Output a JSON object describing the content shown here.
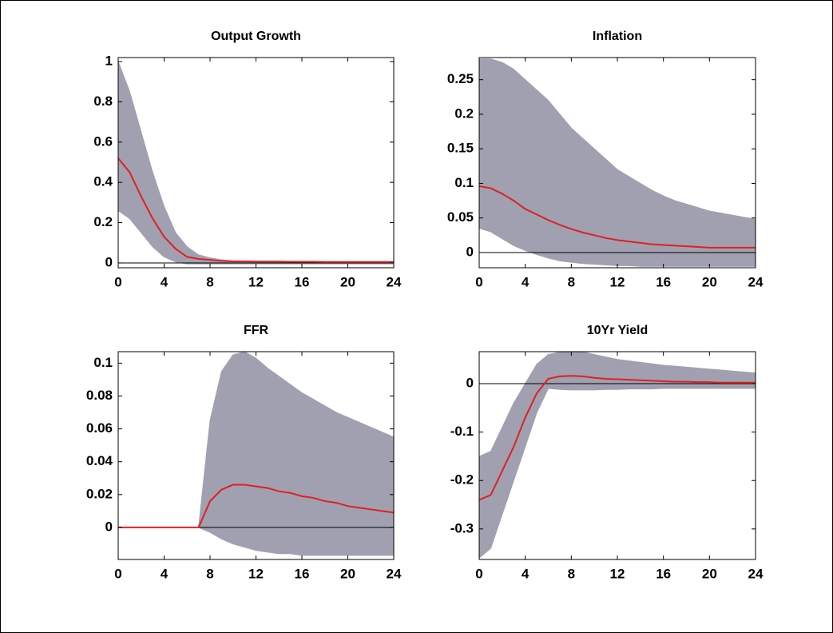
{
  "chart_data": [
    {
      "type": "line",
      "title": "Output Growth",
      "x": [
        0,
        1,
        2,
        3,
        4,
        5,
        6,
        7,
        8,
        9,
        10,
        11,
        12,
        13,
        14,
        15,
        16,
        17,
        18,
        19,
        20,
        21,
        22,
        23,
        24
      ],
      "values": [
        0.52,
        0.45,
        0.33,
        0.22,
        0.13,
        0.07,
        0.03,
        0.02,
        0.015,
        0.01,
        0.008,
        0.008,
        0.007,
        0.007,
        0.007,
        0.006,
        0.006,
        0.006,
        0.005,
        0.005,
        0.005,
        0.005,
        0.005,
        0.005,
        0.005
      ],
      "color": "#e02020",
      "band": {
        "upper": [
          1.0,
          0.85,
          0.65,
          0.45,
          0.28,
          0.15,
          0.08,
          0.04,
          0.025,
          0.015,
          0.01,
          0.009,
          0.008,
          0.008,
          0.007,
          0.007,
          0.007,
          0.006,
          0.006,
          0.006,
          0.006,
          0.005,
          0.005,
          0.005,
          0.005
        ],
        "lower": [
          0.26,
          0.22,
          0.15,
          0.08,
          0.03,
          0.005,
          -0.005,
          -0.005,
          -0.005,
          -0.005,
          -0.005,
          -0.005,
          -0.005,
          -0.005,
          -0.005,
          -0.005,
          -0.005,
          -0.005,
          -0.005,
          -0.005,
          -0.005,
          -0.005,
          -0.005,
          -0.005,
          -0.005
        ],
        "color": "#a0a0b0"
      },
      "xlim": [
        0,
        24
      ],
      "ylim": [
        -0.024,
        1.02
      ],
      "xticks": [
        0,
        4,
        8,
        12,
        16,
        20,
        24
      ],
      "yticks": [
        0,
        0.2,
        0.4,
        0.6,
        0.8,
        1
      ]
    },
    {
      "type": "line",
      "title": "Inflation",
      "x": [
        0,
        1,
        2,
        3,
        4,
        5,
        6,
        7,
        8,
        9,
        10,
        11,
        12,
        13,
        14,
        15,
        16,
        17,
        18,
        19,
        20,
        21,
        22,
        23,
        24
      ],
      "values": [
        0.096,
        0.093,
        0.085,
        0.075,
        0.063,
        0.055,
        0.047,
        0.04,
        0.034,
        0.029,
        0.025,
        0.021,
        0.018,
        0.016,
        0.014,
        0.012,
        0.011,
        0.01,
        0.009,
        0.008,
        0.007,
        0.007,
        0.007,
        0.007,
        0.007
      ],
      "color": "#e02020",
      "band": {
        "upper": [
          0.28,
          0.28,
          0.275,
          0.265,
          0.25,
          0.235,
          0.22,
          0.2,
          0.18,
          0.165,
          0.15,
          0.135,
          0.12,
          0.11,
          0.1,
          0.09,
          0.082,
          0.075,
          0.07,
          0.065,
          0.06,
          0.057,
          0.054,
          0.051,
          0.048
        ],
        "lower": [
          0.035,
          0.03,
          0.02,
          0.01,
          0.003,
          -0.003,
          -0.008,
          -0.012,
          -0.014,
          -0.016,
          -0.017,
          -0.018,
          -0.019,
          -0.019,
          -0.02,
          -0.02,
          -0.02,
          -0.02,
          -0.02,
          -0.02,
          -0.02,
          -0.02,
          -0.02,
          -0.02,
          -0.02
        ],
        "color": "#a0a0b0"
      },
      "xlim": [
        0,
        24
      ],
      "ylim": [
        -0.022,
        0.282
      ],
      "xticks": [
        0,
        4,
        8,
        12,
        16,
        20,
        24
      ],
      "yticks": [
        0,
        0.05,
        0.1,
        0.15,
        0.2,
        0.25
      ]
    },
    {
      "type": "line",
      "title": "FFR",
      "x": [
        0,
        1,
        2,
        3,
        4,
        5,
        6,
        7,
        8,
        9,
        10,
        11,
        12,
        13,
        14,
        15,
        16,
        17,
        18,
        19,
        20,
        21,
        22,
        23,
        24
      ],
      "values": [
        0,
        0,
        0,
        0,
        0,
        0,
        0,
        0,
        0.016,
        0.023,
        0.026,
        0.026,
        0.025,
        0.024,
        0.022,
        0.021,
        0.019,
        0.018,
        0.016,
        0.015,
        0.013,
        0.012,
        0.011,
        0.01,
        0.009
      ],
      "color": "#e02020",
      "band": {
        "upper": [
          0,
          0,
          0,
          0,
          0,
          0,
          0,
          0,
          0.065,
          0.095,
          0.105,
          0.107,
          0.103,
          0.097,
          0.092,
          0.087,
          0.082,
          0.078,
          0.074,
          0.07,
          0.067,
          0.064,
          0.061,
          0.058,
          0.055
        ],
        "lower": [
          0,
          0,
          0,
          0,
          0,
          0,
          0,
          0,
          -0.003,
          -0.007,
          -0.01,
          -0.012,
          -0.014,
          -0.015,
          -0.016,
          -0.016,
          -0.017,
          -0.017,
          -0.017,
          -0.017,
          -0.017,
          -0.017,
          -0.017,
          -0.017,
          -0.017
        ],
        "color": "#a0a0b0"
      },
      "xlim": [
        0,
        24
      ],
      "ylim": [
        -0.0195,
        0.107
      ],
      "xticks": [
        0,
        4,
        8,
        12,
        16,
        20,
        24
      ],
      "yticks": [
        0,
        0.02,
        0.04,
        0.06,
        0.08,
        0.1
      ]
    },
    {
      "type": "line",
      "title": "10Yr Yield",
      "x": [
        0,
        1,
        2,
        3,
        4,
        5,
        6,
        7,
        8,
        9,
        10,
        11,
        12,
        13,
        14,
        15,
        16,
        17,
        18,
        19,
        20,
        21,
        22,
        23,
        24
      ],
      "values": [
        -0.24,
        -0.23,
        -0.18,
        -0.13,
        -0.07,
        -0.02,
        0.01,
        0.015,
        0.016,
        0.015,
        0.012,
        0.01,
        0.009,
        0.008,
        0.007,
        0.006,
        0.005,
        0.004,
        0.004,
        0.003,
        0.003,
        0.002,
        0.002,
        0.002,
        0.002
      ],
      "color": "#e02020",
      "band": {
        "upper": [
          -0.15,
          -0.14,
          -0.09,
          -0.04,
          0.0,
          0.04,
          0.06,
          0.065,
          0.066,
          0.066,
          0.06,
          0.055,
          0.05,
          0.047,
          0.044,
          0.041,
          0.038,
          0.036,
          0.034,
          0.032,
          0.03,
          0.028,
          0.026,
          0.024,
          0.022
        ],
        "lower": [
          -0.36,
          -0.34,
          -0.27,
          -0.2,
          -0.13,
          -0.06,
          -0.01,
          -0.012,
          -0.013,
          -0.013,
          -0.013,
          -0.012,
          -0.012,
          -0.011,
          -0.011,
          -0.011,
          -0.01,
          -0.01,
          -0.01,
          -0.01,
          -0.01,
          -0.01,
          -0.01,
          -0.01,
          -0.01
        ],
        "color": "#a0a0b0"
      },
      "xlim": [
        0,
        24
      ],
      "ylim": [
        -0.363,
        0.066
      ],
      "xticks": [
        0,
        4,
        8,
        12,
        16,
        20,
        24
      ],
      "yticks": [
        -0.3,
        -0.2,
        -0.1,
        0
      ]
    }
  ]
}
